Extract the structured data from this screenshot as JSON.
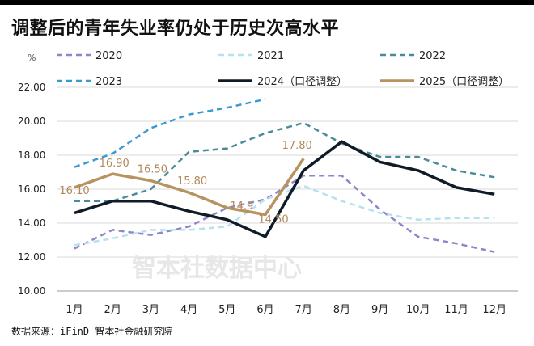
{
  "title": "调整后的青年失业率仍处于历史次高水平",
  "source": "数据来源：iFinD 智本社金融研究院",
  "watermark": "智本社数据中心",
  "chart_data": {
    "type": "line",
    "unit_label": "%",
    "categories": [
      "1月",
      "2月",
      "3月",
      "4月",
      "5月",
      "6月",
      "7月",
      "8月",
      "9月",
      "10月",
      "11月",
      "12月"
    ],
    "ylim": [
      10,
      22
    ],
    "yticks": [
      "10.00",
      "12.00",
      "14.00",
      "16.00",
      "18.00",
      "20.00",
      "22.00"
    ],
    "grid": true,
    "legend_position": "top",
    "series": [
      {
        "name": "2020",
        "color": "#8f86c9",
        "dash": "7,5",
        "width": 2.5,
        "values": [
          12.5,
          13.6,
          13.3,
          13.8,
          14.9,
          15.4,
          16.8,
          16.8,
          14.8,
          13.2,
          12.8,
          12.3
        ]
      },
      {
        "name": "2021",
        "color": "#b4e2ef",
        "dash": "7,5",
        "width": 2.5,
        "values": [
          12.7,
          13.1,
          13.6,
          13.6,
          13.8,
          15.4,
          16.2,
          15.3,
          14.6,
          14.2,
          14.3,
          14.3
        ]
      },
      {
        "name": "2022",
        "color": "#4a8b9b",
        "dash": "7,5",
        "width": 2.5,
        "values": [
          15.3,
          15.3,
          16.0,
          18.2,
          18.4,
          19.3,
          19.9,
          18.7,
          17.9,
          17.9,
          17.1,
          16.7
        ]
      },
      {
        "name": "2023",
        "color": "#3a9ad0",
        "dash": "7,5",
        "width": 2.5,
        "values": [
          17.3,
          18.1,
          19.6,
          20.4,
          20.8,
          21.3,
          null,
          null,
          null,
          null,
          null,
          null
        ]
      },
      {
        "name": "2024（口径调整）",
        "color": "#0f1b26",
        "dash": "",
        "width": 3.5,
        "values": [
          14.6,
          15.3,
          15.3,
          14.7,
          14.2,
          13.2,
          17.1,
          18.8,
          17.6,
          17.1,
          16.1,
          15.7
        ]
      },
      {
        "name": "2025（口径调整）",
        "color": "#b8925f",
        "dash": "",
        "width": 3.5,
        "values": [
          16.1,
          16.9,
          16.5,
          15.8,
          14.9,
          14.5,
          17.8,
          null,
          null,
          null,
          null,
          null
        ]
      }
    ],
    "data_labels": [
      {
        "text": "16.10",
        "series": "2025（口径调整）",
        "index": 0
      },
      {
        "text": "16.90",
        "series": "2025（口径调整）",
        "index": 1
      },
      {
        "text": "16.50",
        "series": "2025（口径调整）",
        "index": 2
      },
      {
        "text": "15.80",
        "series": "2025（口径调整）",
        "index": 3
      },
      {
        "text": "14.9",
        "series": "2025（口径调整）",
        "index": 4
      },
      {
        "text": "14.50",
        "series": "2025（口径调整）",
        "index": 5
      },
      {
        "text": "17.80",
        "series": "2025（口径调整）",
        "index": 6
      }
    ]
  }
}
